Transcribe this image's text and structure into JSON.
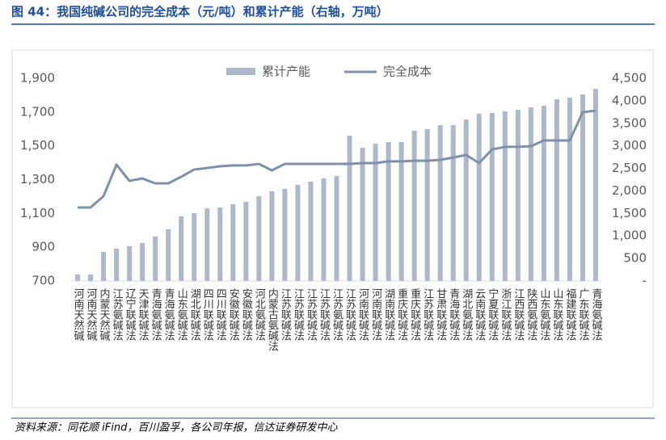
{
  "header": {
    "title": "图 44：我国纯碱公司的完全成本（元/吨）和累计产能（右轴，万吨）"
  },
  "source": "资料来源：同花顺 iFind，百川盈孚，各公司年报，信达证券研发中心",
  "chart_data": {
    "type": "bar_line",
    "categories": [
      "河南天然碱",
      "河南天然碱",
      "内蒙天然碱",
      "江苏氨碱法",
      "辽宁联碱法",
      "天津联碱法",
      "青海氨碱法",
      "青海氨碱法",
      "山东氨碱法",
      "湖北联碱法",
      "四川联碱法",
      "四川联碱法",
      "安徽联碱法",
      "安徽联碱法",
      "河北氨碱法",
      "内蒙古氨碱法",
      "江苏联碱法",
      "江苏联碱法",
      "江苏联碱法",
      "江苏联碱法",
      "江苏氨碱法",
      "江苏联碱法",
      "河南联碱法",
      "河南联碱法",
      "湖南联碱法",
      "重庆联碱法",
      "重庆联碱法",
      "江苏联碱法",
      "甘肃联碱法",
      "青海联碱法",
      "湖北氨碱法",
      "云南联碱法",
      "宁夏联碱法",
      "浙江联碱法",
      "江西联碱法",
      "陕西氨碱法",
      "山东氨碱法",
      "山东联碱法",
      "福建联碱法",
      "广东联碱法",
      "青海氨碱法"
    ],
    "series": [
      {
        "name": "累计产能",
        "color": "#adb9ca",
        "axis": "y2",
        "values": [
          143,
          143,
          645,
          717,
          771,
          843,
          986,
          1147,
          1434,
          1506,
          1614,
          1631,
          1703,
          1757,
          1882,
          1990,
          2044,
          2133,
          2205,
          2277,
          2331,
          3227,
          2958,
          3048,
          3084,
          3084,
          3335,
          3371,
          3460,
          3460,
          3586,
          3711,
          3729,
          3765,
          3801,
          3855,
          3890,
          4034,
          4070,
          4141,
          4267
        ]
      },
      {
        "name": "完全成本",
        "color": "#7e90ab",
        "values": [
          1135,
          1135,
          1202,
          1388,
          1293,
          1307,
          1278,
          1278,
          1317,
          1360,
          1369,
          1379,
          1384,
          1384,
          1393,
          1355,
          1393,
          1393,
          1393,
          1393,
          1393,
          1393,
          1398,
          1398,
          1408,
          1408,
          1412,
          1412,
          1417,
          1431,
          1446,
          1398,
          1479,
          1494,
          1494,
          1498,
          1532,
          1532,
          1532,
          1699,
          1709
        ]
      }
    ],
    "ylim": [
      700,
      1900
    ],
    "yticks": [
      {
        "value": 700,
        "label": "700"
      },
      {
        "value": 900,
        "label": "900"
      },
      {
        "value": 1100,
        "label": "1,100"
      },
      {
        "value": 1300,
        "label": "1,300"
      },
      {
        "value": 1500,
        "label": "1,500"
      },
      {
        "value": 1700,
        "label": "1,700"
      },
      {
        "value": 1900,
        "label": "1,900"
      }
    ],
    "y2lim": [
      0,
      4500
    ],
    "y2ticks": [
      {
        "value": 0,
        "label": "-"
      },
      {
        "value": 500,
        "label": "500"
      },
      {
        "value": 1000,
        "label": "1,000"
      },
      {
        "value": 1500,
        "label": "1,500"
      },
      {
        "value": 2000,
        "label": "2,000"
      },
      {
        "value": 2500,
        "label": "2,500"
      },
      {
        "value": 3000,
        "label": "3,000"
      },
      {
        "value": 3500,
        "label": "3,500"
      },
      {
        "value": 4000,
        "label": "4,000"
      },
      {
        "value": 4500,
        "label": "4,500"
      }
    ],
    "legend": "top"
  }
}
